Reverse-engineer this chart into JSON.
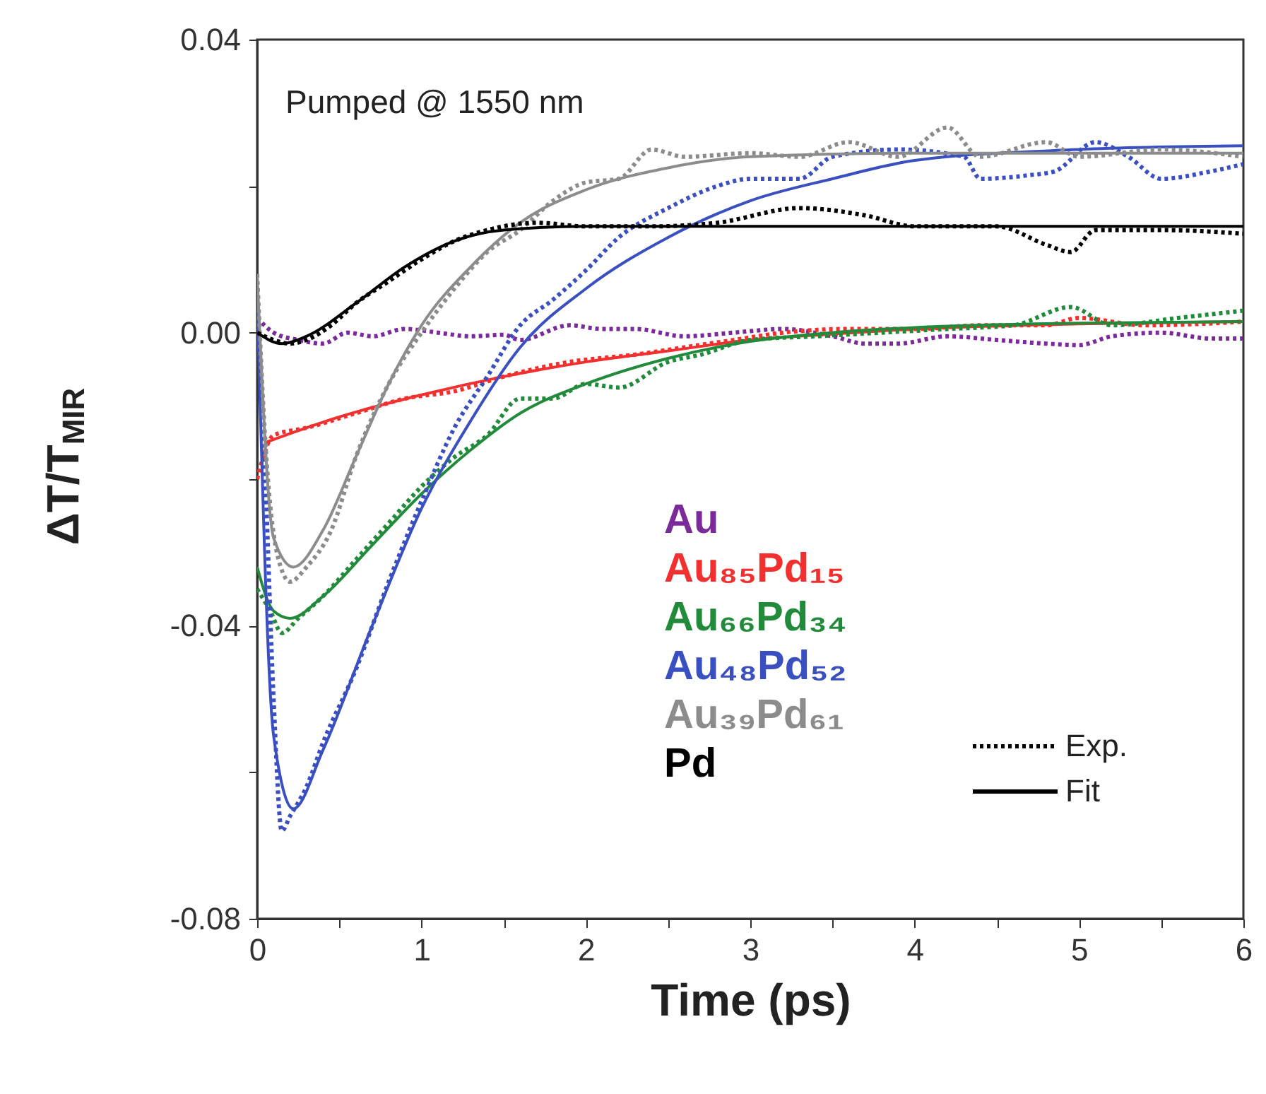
{
  "chart_data": {
    "type": "line",
    "xlabel": "Time (ps)",
    "ylabel": "ΔT/T$_{MIR}$",
    "annotations": [
      "Pumped @ 1550 nm",
      "Exp.",
      "Fit"
    ],
    "xlim": [
      0,
      6
    ],
    "ylim": [
      -0.08,
      0.04
    ],
    "xticks": [
      0,
      {
        "value": 0.5,
        "label": null
      },
      1,
      {
        "value": 1.5,
        "label": null
      },
      2,
      {
        "value": 2.5,
        "label": null
      },
      3,
      {
        "value": 3.5,
        "label": null
      },
      4,
      {
        "value": 4.5,
        "label": null
      },
      5,
      {
        "value": 5.5,
        "label": null
      },
      6
    ],
    "yticks": [
      {
        "value": -0.08,
        "label": "-0.08"
      },
      {
        "value": -0.06,
        "label": null
      },
      {
        "value": -0.04,
        "label": "-0.04"
      },
      {
        "value": -0.02,
        "label": null
      },
      {
        "value": 0,
        "label": "0.00"
      },
      {
        "value": 0.02,
        "label": null
      },
      {
        "value": 0.04,
        "label": "0.04"
      }
    ],
    "legend": "bottom right",
    "series": [
      {
        "name": "Au",
        "color": "#7b2a9a",
        "line_style": "dotted",
        "x": [
          0,
          0.1,
          0.25,
          0.4,
          0.55,
          0.7,
          0.9,
          1.1,
          1.3,
          1.5,
          1.6,
          1.9,
          2.1,
          2.3,
          2.6,
          2.9,
          3.2,
          3.5,
          3.7,
          3.9,
          4.2,
          4.5,
          4.8,
          5.0,
          5.2,
          5.5,
          5.8,
          6
        ],
        "values": [
          0.002,
          0.0,
          -0.001,
          -0.0015,
          0.0,
          -0.0005,
          0.0005,
          0.0,
          -0.0005,
          -0.0003,
          -0.001,
          0.001,
          0.0005,
          0.0005,
          -0.0005,
          0.0,
          0.0005,
          -0.0005,
          -0.0015,
          -0.0015,
          -0.0005,
          -0.001,
          -0.0015,
          -0.0017,
          -0.0005,
          0.0,
          -0.0008,
          -0.0008
        ]
      },
      {
        "name": "Au₈₅Pd₁₅",
        "color": "#f2302f",
        "line_style": "dotted",
        "x": [
          0,
          0.1,
          0.3,
          0.6,
          0.9,
          1.2,
          1.5,
          1.9,
          2.3,
          2.6,
          2.9,
          3.2,
          3.6,
          4.0,
          4.4,
          4.8,
          5.0,
          5.4,
          6
        ],
        "values": [
          -0.02,
          -0.014,
          -0.013,
          -0.011,
          -0.009,
          -0.008,
          -0.006,
          -0.004,
          -0.003,
          -0.002,
          -0.001,
          0.0,
          0.0005,
          0.0005,
          0.001,
          0.001,
          0.002,
          0.001,
          0.0015
        ]
      },
      {
        "color": "#f2302f",
        "line_style": "solid",
        "x": [
          0.05,
          0.5,
          1,
          1.5,
          2,
          2.5,
          3,
          3.5,
          4,
          5,
          6
        ],
        "values": [
          -0.015,
          -0.0115,
          -0.0085,
          -0.006,
          -0.004,
          -0.0025,
          -0.001,
          -0.0002,
          0.0005,
          0.0012,
          0.0015
        ]
      },
      {
        "name": "Au₆₆Pd₃₄",
        "color": "#228b3b",
        "line_style": "dotted",
        "x": [
          0,
          0.08,
          0.15,
          0.25,
          0.4,
          0.6,
          0.8,
          1.0,
          1.2,
          1.4,
          1.6,
          1.8,
          2.0,
          2.2,
          2.5,
          2.7,
          3.0,
          3.4,
          3.8,
          4.2,
          4.6,
          4.95,
          5.2,
          5.6,
          6
        ],
        "values": [
          -0.035,
          -0.038,
          -0.041,
          -0.039,
          -0.036,
          -0.031,
          -0.026,
          -0.021,
          -0.017,
          -0.014,
          -0.009,
          -0.009,
          -0.007,
          -0.0075,
          -0.004,
          -0.003,
          -0.001,
          -0.0005,
          0.0,
          0.0005,
          0.001,
          0.0035,
          0.001,
          0.002,
          0.003
        ]
      },
      {
        "color": "#228b3b",
        "line_style": "solid",
        "x": [
          0,
          0.1,
          0.2,
          0.4,
          0.7,
          1.0,
          1.3,
          1.6,
          2.0,
          2.5,
          3,
          3.5,
          4,
          5,
          6
        ],
        "values": [
          -0.032,
          -0.038,
          -0.039,
          -0.036,
          -0.029,
          -0.022,
          -0.016,
          -0.011,
          -0.007,
          -0.0035,
          -0.0012,
          0.0,
          0.0007,
          0.0013,
          0.0015
        ]
      },
      {
        "name": "Au₄₈Pd₅₂",
        "color": "#3b50c0",
        "line_style": "dotted",
        "x": [
          0,
          0.05,
          0.1,
          0.15,
          0.2,
          0.3,
          0.4,
          0.6,
          0.8,
          1.0,
          1.2,
          1.4,
          1.6,
          1.8,
          2.0,
          2.2,
          2.5,
          2.8,
          3.0,
          3.3,
          3.5,
          3.9,
          4.3,
          4.4,
          4.7,
          4.85,
          5.1,
          5.3,
          5.5,
          5.8,
          6
        ],
        "values": [
          0.005,
          -0.02,
          -0.05,
          -0.068,
          -0.066,
          -0.062,
          -0.056,
          -0.046,
          -0.034,
          -0.023,
          -0.013,
          -0.006,
          0.001,
          0.0045,
          0.0085,
          0.013,
          0.017,
          0.02,
          0.021,
          0.021,
          0.024,
          0.025,
          0.024,
          0.021,
          0.0215,
          0.022,
          0.026,
          0.024,
          0.021,
          0.022,
          0.023
        ]
      },
      {
        "color": "#3b50c0",
        "line_style": "solid",
        "x": [
          0,
          0.1,
          0.22,
          0.4,
          0.7,
          1.0,
          1.3,
          1.6,
          2.0,
          2.5,
          3.0,
          3.5,
          4.0,
          5,
          6
        ],
        "values": [
          0.005,
          -0.055,
          -0.065,
          -0.057,
          -0.04,
          -0.024,
          -0.012,
          -0.002,
          0.006,
          0.013,
          0.018,
          0.021,
          0.0235,
          0.025,
          0.0255
        ]
      },
      {
        "name": "Au₃₉Pd₆₁",
        "color": "#8c8c8c",
        "line_style": "dotted",
        "x": [
          0,
          0.05,
          0.12,
          0.2,
          0.3,
          0.45,
          0.6,
          0.8,
          1.0,
          1.2,
          1.4,
          1.6,
          1.8,
          2.0,
          2.2,
          2.4,
          2.6,
          3.0,
          3.3,
          3.6,
          3.9,
          4.2,
          4.4,
          4.8,
          5.0,
          5.5,
          6
        ],
        "values": [
          0.008,
          -0.015,
          -0.03,
          -0.034,
          -0.032,
          -0.027,
          -0.017,
          -0.007,
          0.0,
          0.006,
          0.011,
          0.014,
          0.018,
          0.0205,
          0.021,
          0.025,
          0.024,
          0.0245,
          0.024,
          0.026,
          0.024,
          0.028,
          0.024,
          0.026,
          0.024,
          0.025,
          0.024
        ]
      },
      {
        "color": "#8c8c8c",
        "line_style": "solid",
        "x": [
          0,
          0.1,
          0.22,
          0.4,
          0.6,
          0.8,
          1.0,
          1.3,
          1.6,
          2.0,
          2.5,
          3.0,
          4.0,
          6
        ],
        "values": [
          0.008,
          -0.028,
          -0.032,
          -0.027,
          -0.017,
          -0.007,
          0.001,
          0.009,
          0.015,
          0.0195,
          0.0225,
          0.024,
          0.0245,
          0.0245
        ]
      },
      {
        "name": "Pd",
        "color": "#000000",
        "line_style": "dotted",
        "x": [
          0,
          0.1,
          0.2,
          0.3,
          0.45,
          0.6,
          0.8,
          1.0,
          1.2,
          1.4,
          1.7,
          2.0,
          2.4,
          2.8,
          3.3,
          3.7,
          4.0,
          4.5,
          4.8,
          4.95,
          5.1,
          5.5,
          6
        ],
        "values": [
          0.0,
          -0.001,
          -0.0015,
          -0.001,
          0.001,
          0.004,
          0.007,
          0.01,
          0.0125,
          0.014,
          0.015,
          0.0145,
          0.0145,
          0.015,
          0.017,
          0.016,
          0.0145,
          0.0145,
          0.012,
          0.011,
          0.014,
          0.014,
          0.0135
        ]
      },
      {
        "color": "#000000",
        "line_style": "solid",
        "x": [
          0,
          0.15,
          0.3,
          0.6,
          0.9,
          1.2,
          1.5,
          2.0,
          6
        ],
        "values": [
          0.0,
          -0.0015,
          -0.0005,
          0.004,
          0.009,
          0.0125,
          0.014,
          0.0145,
          0.0145
        ]
      }
    ]
  }
}
